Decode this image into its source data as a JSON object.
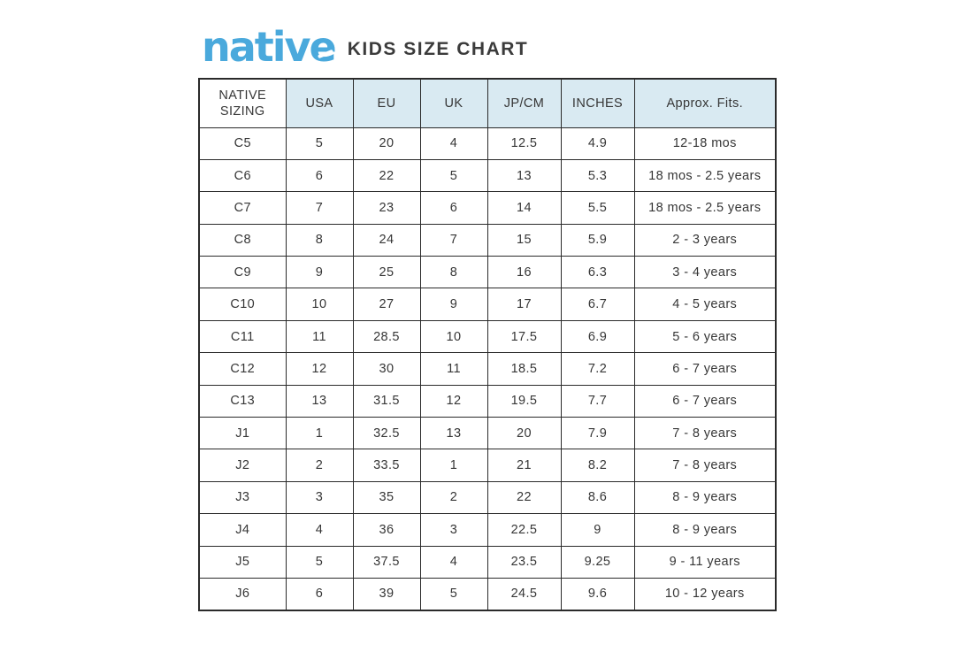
{
  "page": {
    "logo_text": "native",
    "title": "KIDS SIZE CHART"
  },
  "colors": {
    "logo_blue": "#4aa9dc",
    "header_bg": "#d9eaf2",
    "border": "#2a2a2a",
    "text": "#363636"
  },
  "chart_data": {
    "type": "table",
    "title": "native KIDS SIZE CHART",
    "headers": [
      "NATIVE SIZING",
      "USA",
      "EU",
      "UK",
      "JP/CM",
      "INCHES",
      "Approx. Fits."
    ],
    "rows": [
      [
        "C5",
        "5",
        "20",
        "4",
        "12.5",
        "4.9",
        "12-18 mos"
      ],
      [
        "C6",
        "6",
        "22",
        "5",
        "13",
        "5.3",
        "18 mos - 2.5 years"
      ],
      [
        "C7",
        "7",
        "23",
        "6",
        "14",
        "5.5",
        "18 mos - 2.5 years"
      ],
      [
        "C8",
        "8",
        "24",
        "7",
        "15",
        "5.9",
        "2 - 3 years"
      ],
      [
        "C9",
        "9",
        "25",
        "8",
        "16",
        "6.3",
        "3 - 4 years"
      ],
      [
        "C10",
        "10",
        "27",
        "9",
        "17",
        "6.7",
        "4 - 5 years"
      ],
      [
        "C11",
        "11",
        "28.5",
        "10",
        "17.5",
        "6.9",
        "5 - 6 years"
      ],
      [
        "C12",
        "12",
        "30",
        "11",
        "18.5",
        "7.2",
        "6 - 7 years"
      ],
      [
        "C13",
        "13",
        "31.5",
        "12",
        "19.5",
        "7.7",
        "6 - 7 years"
      ],
      [
        "J1",
        "1",
        "32.5",
        "13",
        "20",
        "7.9",
        "7 - 8 years"
      ],
      [
        "J2",
        "2",
        "33.5",
        "1",
        "21",
        "8.2",
        "7 - 8 years"
      ],
      [
        "J3",
        "3",
        "35",
        "2",
        "22",
        "8.6",
        "8 - 9 years"
      ],
      [
        "J4",
        "4",
        "36",
        "3",
        "22.5",
        "9",
        "8 - 9 years"
      ],
      [
        "J5",
        "5",
        "37.5",
        "4",
        "23.5",
        "9.25",
        "9 - 11 years"
      ],
      [
        "J6",
        "6",
        "39",
        "5",
        "24.5",
        "9.6",
        "10 - 12 years"
      ]
    ]
  }
}
